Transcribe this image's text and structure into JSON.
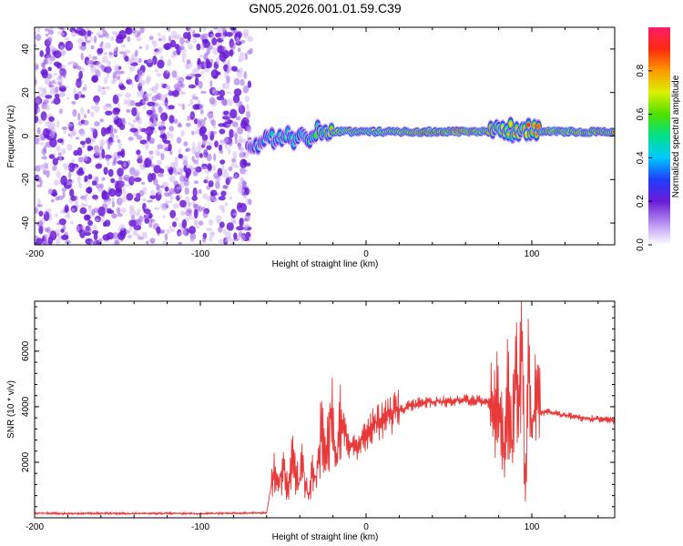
{
  "figure": {
    "title": "GN05.2026.001.01.59.C39"
  },
  "chart_data": [
    {
      "type": "heatmap",
      "xlabel": "Height of straight line (km)",
      "ylabel": "Frequency (Hz)",
      "xlim": [
        -200,
        150
      ],
      "ylim": [
        -50,
        50
      ],
      "xticks": [
        -200,
        -100,
        0,
        100
      ],
      "yticks": [
        -40,
        -20,
        0,
        20,
        40
      ],
      "colorbar": {
        "label": "Normalized spectral amplitude",
        "range": [
          0,
          1
        ],
        "ticks": [
          0.0,
          0.2,
          0.4,
          0.6,
          0.8
        ],
        "tick_labels": [
          "0.0",
          "0.2",
          "0.4",
          "0.6",
          "0.8"
        ]
      },
      "noise_region": {
        "x_range": [
          -200,
          -70
        ],
        "description_level": "low",
        "color": "#6a1bd6"
      },
      "ridge": [
        {
          "x": -70,
          "y": -4,
          "amp": 0.35
        },
        {
          "x": -60,
          "y": -2,
          "amp": 0.45
        },
        {
          "x": -50,
          "y": 0,
          "amp": 0.5
        },
        {
          "x": -40,
          "y": -2,
          "amp": 0.55
        },
        {
          "x": -30,
          "y": 2,
          "amp": 0.6
        },
        {
          "x": -20,
          "y": 2,
          "amp": 0.85
        },
        {
          "x": -10,
          "y": 2,
          "amp": 0.8
        },
        {
          "x": 0,
          "y": 2,
          "amp": 0.7
        },
        {
          "x": 10,
          "y": 2,
          "amp": 0.75
        },
        {
          "x": 20,
          "y": 2,
          "amp": 0.8
        },
        {
          "x": 30,
          "y": 2,
          "amp": 0.9
        },
        {
          "x": 40,
          "y": 2,
          "amp": 0.95
        },
        {
          "x": 50,
          "y": 2,
          "amp": 0.95
        },
        {
          "x": 60,
          "y": 2,
          "amp": 0.95
        },
        {
          "x": 70,
          "y": 2,
          "amp": 0.9
        },
        {
          "x": 80,
          "y": 2,
          "amp": 0.75
        },
        {
          "x": 90,
          "y": 3,
          "amp": 0.8
        },
        {
          "x": 100,
          "y": 2,
          "amp": 0.85
        },
        {
          "x": 110,
          "y": 2,
          "amp": 0.9
        },
        {
          "x": 120,
          "y": 2,
          "amp": 0.9
        },
        {
          "x": 130,
          "y": 2,
          "amp": 0.9
        },
        {
          "x": 140,
          "y": 2,
          "amp": 0.85
        },
        {
          "x": 150,
          "y": 2,
          "amp": 0.8
        }
      ]
    },
    {
      "type": "line",
      "xlabel": "Height of straight line (km)",
      "ylabel": "SNR (10 * v/v)",
      "xlim": [
        -200,
        150
      ],
      "ylim": [
        0,
        7800
      ],
      "xticks": [
        -200,
        -100,
        0,
        100
      ],
      "yticks": [
        2000,
        4000,
        6000
      ],
      "color": "#e83a3a",
      "series": [
        {
          "x": [
            -200,
            -180,
            -160,
            -140,
            -120,
            -100,
            -80,
            -60,
            -56,
            -53,
            -50,
            -47,
            -44,
            -41,
            -38,
            -35,
            -32,
            -30,
            -27,
            -24,
            -21,
            -18,
            -15,
            -10,
            -5,
            0,
            5,
            10,
            15,
            20,
            25,
            30,
            35,
            40,
            50,
            60,
            70,
            75,
            78,
            80,
            83,
            85,
            88,
            90,
            92,
            94,
            96,
            98,
            100,
            102,
            105,
            110,
            120,
            130,
            140,
            150
          ],
          "y": [
            170,
            150,
            160,
            150,
            160,
            150,
            170,
            180,
            1600,
            1100,
            2000,
            900,
            2300,
            1200,
            1900,
            650,
            1700,
            1400,
            3000,
            1900,
            4000,
            2000,
            3500,
            2500,
            2600,
            3000,
            3400,
            3500,
            3700,
            3900,
            4000,
            4100,
            4150,
            4200,
            4200,
            4250,
            4200,
            4100,
            4050,
            4200,
            2500,
            4600,
            2400,
            5800,
            3000,
            6500,
            600,
            5600,
            2800,
            4200,
            3800,
            3800,
            3700,
            3600,
            3550,
            3500
          ]
        }
      ]
    }
  ]
}
